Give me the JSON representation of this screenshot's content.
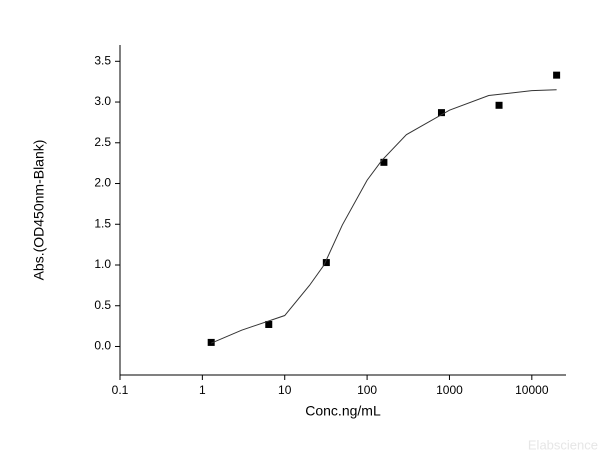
{
  "chart_data": {
    "type": "scatter",
    "xlabel": "Conc.ng/mL",
    "ylabel": "Abs.(OD450nm-Blank)",
    "watermark": "Elabscience",
    "xscale": "log",
    "xlim": [
      0.1,
      26000
    ],
    "ylim": [
      -0.35,
      3.7
    ],
    "xticks": [
      0.1,
      1,
      10,
      100,
      1000,
      10000
    ],
    "yticks": [
      {
        "value": 0,
        "label": "0.0"
      },
      {
        "value": 0.5,
        "label": "0.5"
      },
      {
        "value": 1,
        "label": "1.0"
      },
      {
        "value": 1.5,
        "label": "1.5"
      },
      {
        "value": 2,
        "label": "2.0"
      },
      {
        "value": 2.5,
        "label": "2.5"
      },
      {
        "value": 3,
        "label": "3.0"
      },
      {
        "value": 3.5,
        "label": "3.5"
      }
    ],
    "series": [
      {
        "mode": "markers",
        "color": "#000000",
        "x": [
          1.28,
          6.4,
          32,
          160,
          800,
          4000,
          20000
        ],
        "values": [
          0.05,
          0.27,
          1.03,
          2.26,
          2.87,
          2.96,
          3.33
        ]
      },
      {
        "mode": "line",
        "color": "#333333",
        "x": [
          1.28,
          3,
          10,
          20,
          30,
          50,
          100,
          150,
          300,
          1000,
          3000,
          10000,
          20000
        ],
        "values": [
          0.04,
          0.2,
          0.38,
          0.75,
          1.0,
          1.49,
          2.04,
          2.28,
          2.6,
          2.9,
          3.08,
          3.14,
          3.15
        ]
      }
    ]
  }
}
